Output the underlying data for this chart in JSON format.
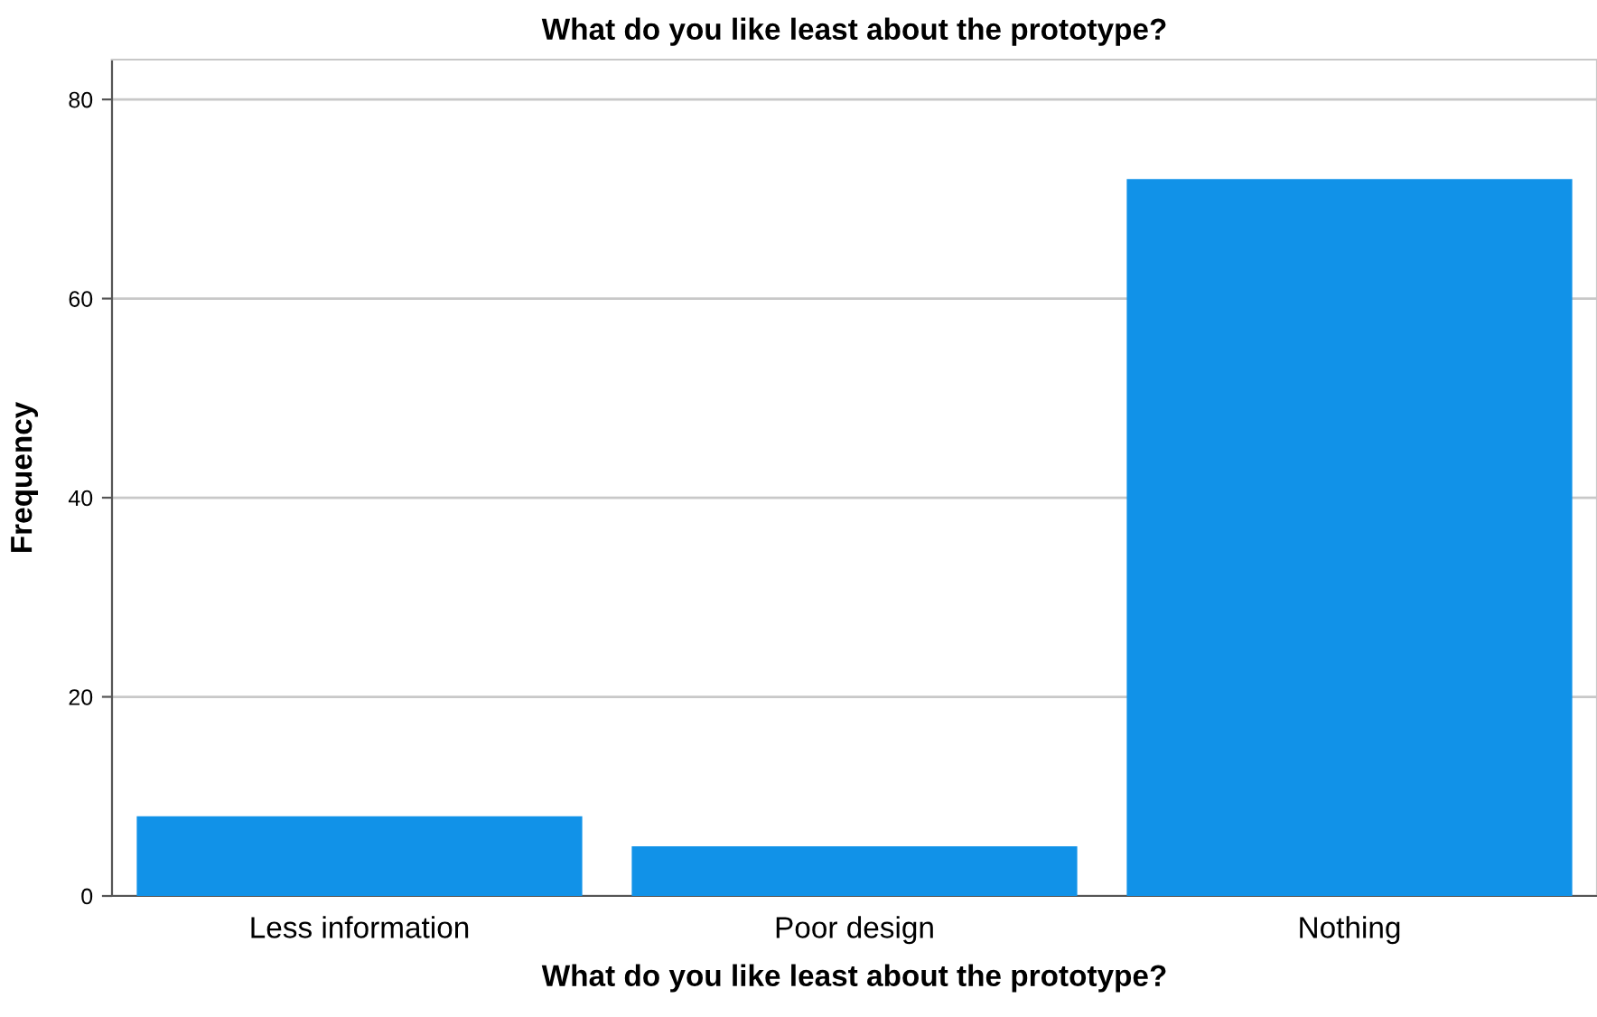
{
  "chart_data": {
    "type": "bar",
    "title": "What do you like least about the prototype?",
    "xlabel": "What do you like least about the prototype?",
    "ylabel": "Frequency",
    "categories": [
      "Less information",
      "Poor design",
      "Nothing"
    ],
    "values": [
      8,
      5,
      72
    ],
    "color": "#1192e8",
    "ylim": [
      0,
      84
    ],
    "yticks": [
      0,
      20,
      40,
      60,
      80
    ],
    "grid": "y"
  }
}
